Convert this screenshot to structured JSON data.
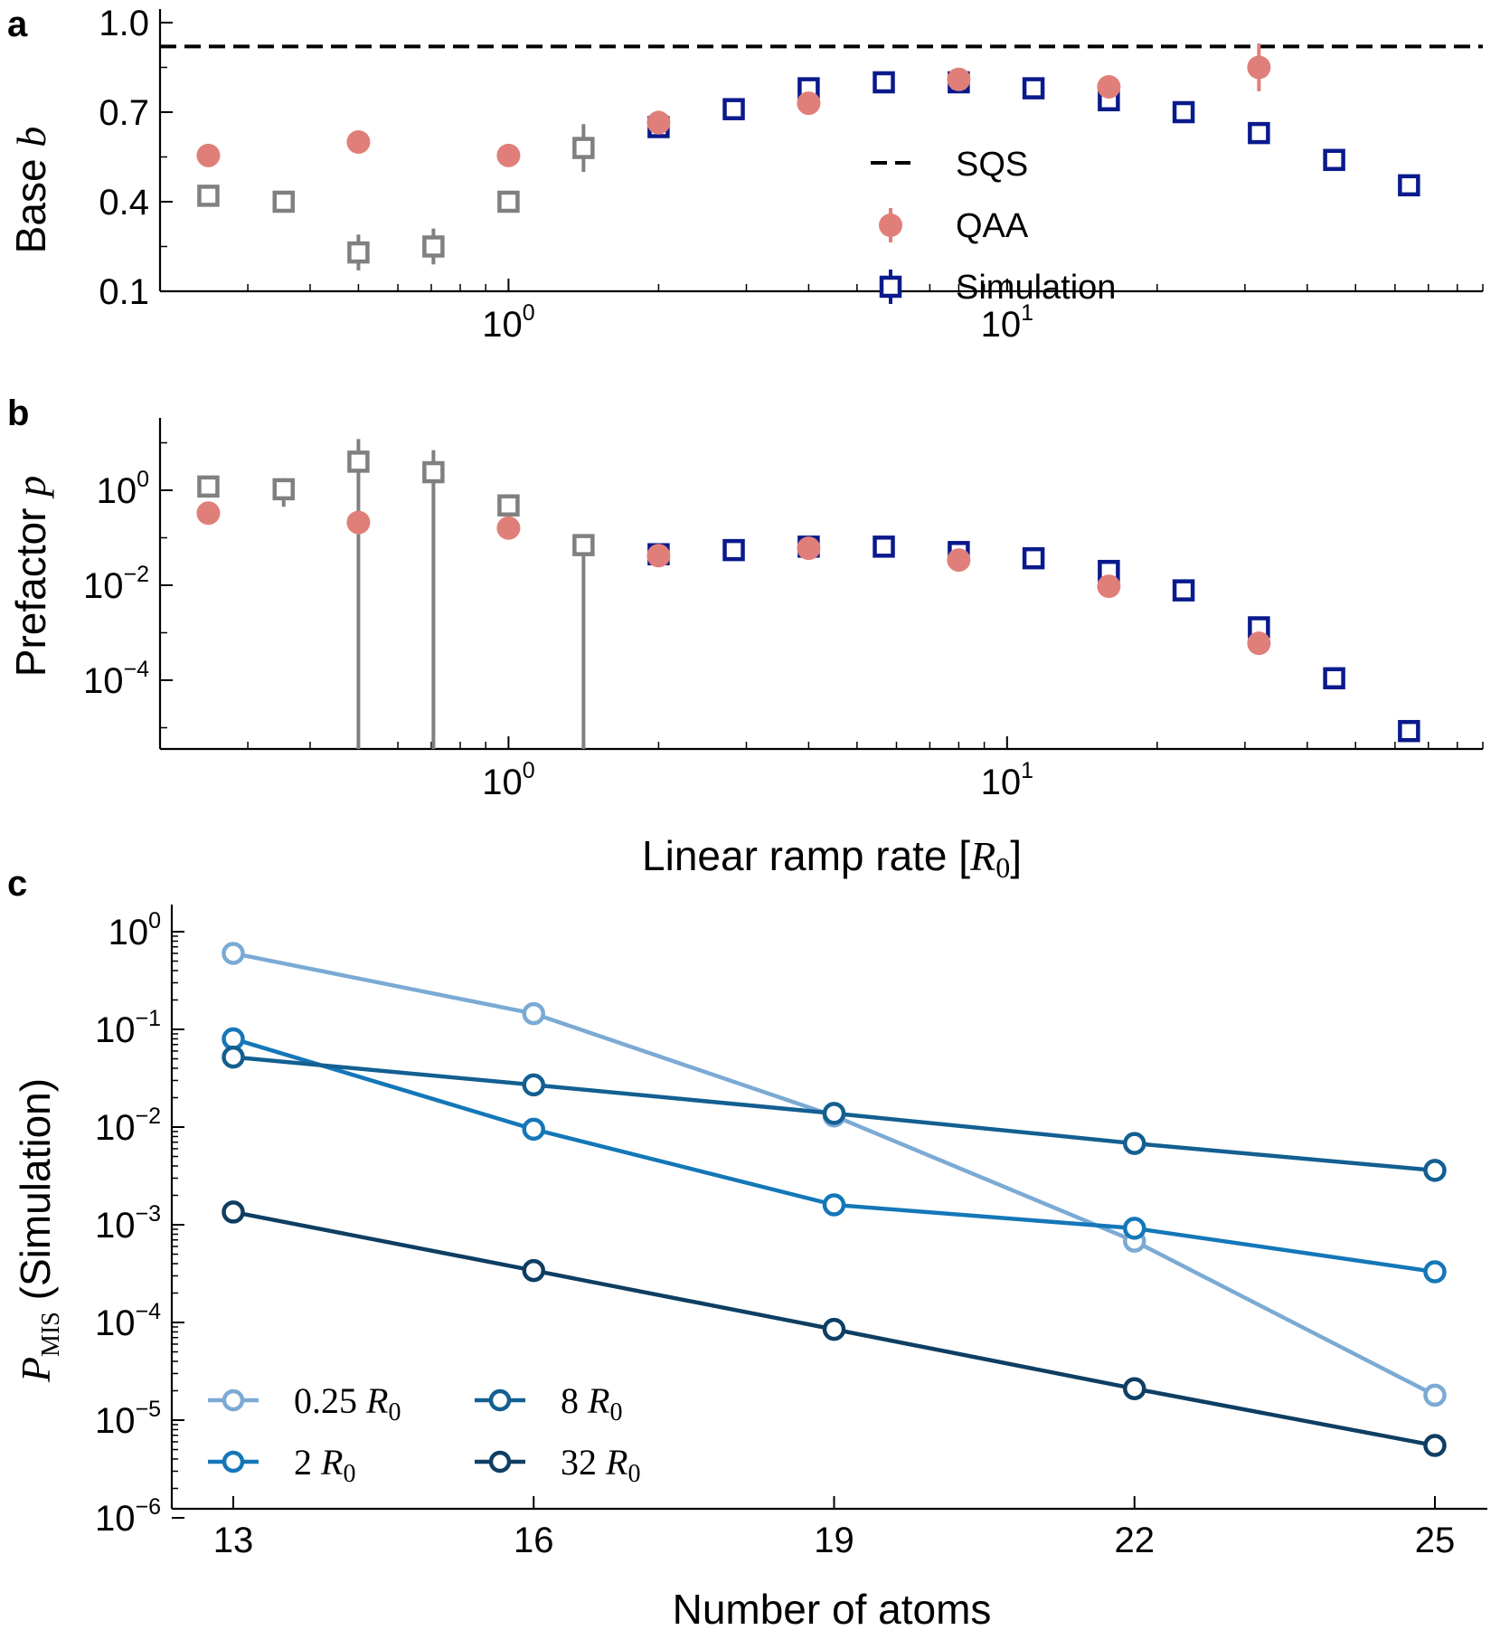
{
  "chart_data": [
    {
      "panel": "a",
      "type": "scatter",
      "xscale": "log",
      "xlim": [
        0.2,
        90
      ],
      "ylim": [
        0.1,
        1.0
      ],
      "yticks": [
        "0.1",
        "0.4",
        "0.7",
        "1.0"
      ],
      "xticks": [
        {
          "base": "10",
          "exp": "0"
        },
        {
          "base": "10",
          "exp": "1"
        }
      ],
      "ylabel": "Base",
      "ylabel_var": "b",
      "reference_line": {
        "name": "SQS",
        "y": 0.92,
        "style": "dashed",
        "color": "#000000"
      },
      "legend_position": "center-right",
      "series": [
        {
          "name": "QAA",
          "marker": "circle",
          "color": "#e07f7a",
          "points": [
            {
              "x": 0.25,
              "y": 0.555,
              "err": 0.0
            },
            {
              "x": 0.5,
              "y": 0.6,
              "err": 0.0
            },
            {
              "x": 1.0,
              "y": 0.555,
              "err": 0.0
            },
            {
              "x": 2.0,
              "y": 0.665,
              "err": 0.04
            },
            {
              "x": 4.0,
              "y": 0.73,
              "err": 0.0
            },
            {
              "x": 8.0,
              "y": 0.81,
              "err": 0.0
            },
            {
              "x": 16.0,
              "y": 0.785,
              "err": 0.0
            },
            {
              "x": 32.0,
              "y": 0.85,
              "err": 0.08
            }
          ]
        },
        {
          "name": "Simulation",
          "marker": "square",
          "color": "#0a1a8c",
          "color_low_rate": "#808080",
          "points": [
            {
              "x": 0.25,
              "y": 0.42,
              "err": 0.02
            },
            {
              "x": 0.354,
              "y": 0.4,
              "err": 0.02
            },
            {
              "x": 0.5,
              "y": 0.23,
              "err": 0.06
            },
            {
              "x": 0.707,
              "y": 0.25,
              "err": 0.06
            },
            {
              "x": 1.0,
              "y": 0.4,
              "err": 0.03
            },
            {
              "x": 1.414,
              "y": 0.58,
              "err": 0.08
            },
            {
              "x": 2.0,
              "y": 0.65,
              "err": 0.0
            },
            {
              "x": 2.83,
              "y": 0.71,
              "err": 0.0
            },
            {
              "x": 4.0,
              "y": 0.78,
              "err": 0.0
            },
            {
              "x": 5.66,
              "y": 0.8,
              "err": 0.0
            },
            {
              "x": 8.0,
              "y": 0.8,
              "err": 0.0
            },
            {
              "x": 11.3,
              "y": 0.78,
              "err": 0.0
            },
            {
              "x": 16.0,
              "y": 0.74,
              "err": 0.0
            },
            {
              "x": 22.6,
              "y": 0.7,
              "err": 0.0
            },
            {
              "x": 32.0,
              "y": 0.63,
              "err": 0.0
            },
            {
              "x": 45.3,
              "y": 0.54,
              "err": 0.0
            },
            {
              "x": 64.0,
              "y": 0.455,
              "err": 0.0
            }
          ]
        }
      ]
    },
    {
      "panel": "b",
      "type": "scatter",
      "xscale": "log",
      "yscale": "log",
      "xlim": [
        0.2,
        90
      ],
      "ylim": [
        2e-06,
        20
      ],
      "yticks": [
        {
          "base": "10",
          "exp": "0"
        },
        {
          "base": "10",
          "exp": "−2"
        },
        {
          "base": "10",
          "exp": "−4"
        }
      ],
      "xticks": [
        {
          "base": "10",
          "exp": "0"
        },
        {
          "base": "10",
          "exp": "1"
        }
      ],
      "ylabel": "Prefactor",
      "ylabel_var": "p",
      "xlabel": "Linear ramp rate [",
      "xlabel_var": "R",
      "xlabel_sub": "0",
      "xlabel_end": "]",
      "series": [
        {
          "name": "QAA",
          "marker": "circle",
          "color": "#e07f7a",
          "points": [
            {
              "x": 0.25,
              "y": 0.33
            },
            {
              "x": 0.5,
              "y": 0.21
            },
            {
              "x": 1.0,
              "y": 0.16
            },
            {
              "x": 2.0,
              "y": 0.042
            },
            {
              "x": 4.0,
              "y": 0.06
            },
            {
              "x": 8.0,
              "y": 0.034
            },
            {
              "x": 16.0,
              "y": 0.0095
            },
            {
              "x": 32.0,
              "y": 0.0006
            }
          ]
        },
        {
          "name": "Simulation",
          "marker": "square",
          "color": "#0a1a8c",
          "color_low_rate": "#808080",
          "points": [
            {
              "x": 0.25,
              "y": 1.2,
              "lo": 0.7,
              "hi": 1.8
            },
            {
              "x": 0.354,
              "y": 1.05,
              "lo": 0.45,
              "hi": 1.8
            },
            {
              "x": 0.5,
              "y": 4.0,
              "lo": 2e-06,
              "hi": 12
            },
            {
              "x": 0.707,
              "y": 2.4,
              "lo": 2e-06,
              "hi": 7
            },
            {
              "x": 1.0,
              "y": 0.48,
              "lo": 0.48,
              "hi": 0.48
            },
            {
              "x": 1.414,
              "y": 0.07,
              "lo": 2e-06,
              "hi": 0.1
            },
            {
              "x": 2.0,
              "y": 0.045
            },
            {
              "x": 2.83,
              "y": 0.055
            },
            {
              "x": 4.0,
              "y": 0.065
            },
            {
              "x": 5.66,
              "y": 0.065
            },
            {
              "x": 8.0,
              "y": 0.05
            },
            {
              "x": 11.3,
              "y": 0.037
            },
            {
              "x": 16.0,
              "y": 0.02
            },
            {
              "x": 22.6,
              "y": 0.0078
            },
            {
              "x": 32.0,
              "y": 0.0013
            },
            {
              "x": 45.3,
              "y": 0.00011
            },
            {
              "x": 64.0,
              "y": 8.5e-06
            }
          ]
        }
      ]
    },
    {
      "panel": "c",
      "type": "line",
      "yscale": "log",
      "xlim": [
        12.3,
        25.6
      ],
      "ylim": [
        1e-06,
        1
      ],
      "categories": [
        13,
        16,
        19,
        22,
        25
      ],
      "xticks": [
        "13",
        "16",
        "19",
        "22",
        "25"
      ],
      "yticks": [
        {
          "base": "10",
          "exp": "0"
        },
        {
          "base": "10",
          "exp": "−1"
        },
        {
          "base": "10",
          "exp": "−2"
        },
        {
          "base": "10",
          "exp": "−3"
        },
        {
          "base": "10",
          "exp": "−4"
        },
        {
          "base": "10",
          "exp": "−5"
        },
        {
          "base": "10",
          "exp": "−6"
        }
      ],
      "xlabel": "Number of atoms",
      "ylabel_var": "P",
      "ylabel_sub": "MIS",
      "ylabel": "(Simulation)",
      "legend_position": "lower-left",
      "series": [
        {
          "name": "0.25",
          "unit": "R",
          "unit_sub": "0",
          "color": "#7baad4",
          "values": [
            0.6,
            0.145,
            0.013,
            0.00068,
            1.8e-05
          ]
        },
        {
          "name": "2",
          "unit": "R",
          "unit_sub": "0",
          "color": "#1477b8",
          "values": [
            0.08,
            0.0095,
            0.0016,
            0.00092,
            0.00033
          ]
        },
        {
          "name": "8",
          "unit": "R",
          "unit_sub": "0",
          "color": "#135f91",
          "values": [
            0.052,
            0.027,
            0.0138,
            0.0068,
            0.0036
          ]
        },
        {
          "name": "32",
          "unit": "R",
          "unit_sub": "0",
          "color": "#0e3e63",
          "values": [
            0.00135,
            0.00034,
            8.5e-05,
            2.1e-05,
            5.5e-06
          ]
        }
      ]
    }
  ],
  "panel_labels": {
    "a": "a",
    "b": "b",
    "c": "c"
  }
}
